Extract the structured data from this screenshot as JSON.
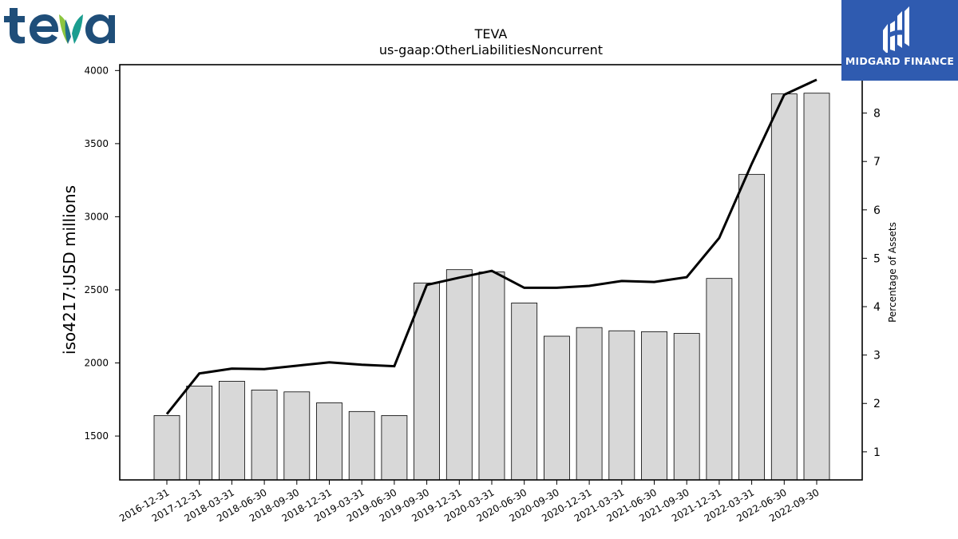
{
  "brand": {
    "logo_text": "teva",
    "badge_text": "MIDGARD FINANCE"
  },
  "colors": {
    "bar_fill": "#d8d8d8",
    "bar_stroke": "#000000",
    "line": "#000000",
    "badge_bg": "#2f5bb0",
    "teva_blue": "#1f4e79",
    "teva_leaf_light": "#8cc63f",
    "teva_leaf_dark": "#1a9d8f"
  },
  "chart_data": {
    "type": "bar",
    "title": "TEVA",
    "subtitle": "us-gaap:OtherLiabilitiesNoncurrent",
    "ylabel": "iso4217:USD  millions",
    "y2label": "Percentage of Assets",
    "categories": [
      "2016-12-31",
      "2017-12-31",
      "2018-03-31",
      "2018-06-30",
      "2018-09-30",
      "2018-12-31",
      "2019-03-31",
      "2019-06-30",
      "2019-09-30",
      "2019-12-31",
      "2020-03-31",
      "2020-06-30",
      "2020-09-30",
      "2020-12-31",
      "2021-03-31",
      "2021-06-30",
      "2021-09-30",
      "2021-12-31",
      "2022-03-31",
      "2022-06-30",
      "2022-09-30"
    ],
    "series": [
      {
        "type": "bar",
        "axis": "left",
        "values": [
          1640,
          1842,
          1875,
          1815,
          1802,
          1727,
          1668,
          1640,
          2547,
          2638,
          2622,
          2410,
          2183,
          2242,
          2220,
          2214,
          2202,
          2578,
          3290,
          3840,
          3845
        ]
      },
      {
        "type": "line",
        "axis": "right",
        "values": [
          1.78,
          2.62,
          2.72,
          2.71,
          2.78,
          2.85,
          2.8,
          2.77,
          4.45,
          4.6,
          4.74,
          4.39,
          4.39,
          4.43,
          4.53,
          4.51,
          4.61,
          5.42,
          6.95,
          8.38,
          8.69
        ]
      }
    ],
    "ylim": [
      1200,
      4040
    ],
    "y2lim": [
      0.42,
      9.0
    ],
    "yticks": [
      1500,
      2000,
      2500,
      3000,
      3500,
      4000
    ],
    "y2ticks": [
      1,
      2,
      3,
      4,
      5,
      6,
      7,
      8
    ],
    "grid": false,
    "legend": "none"
  }
}
